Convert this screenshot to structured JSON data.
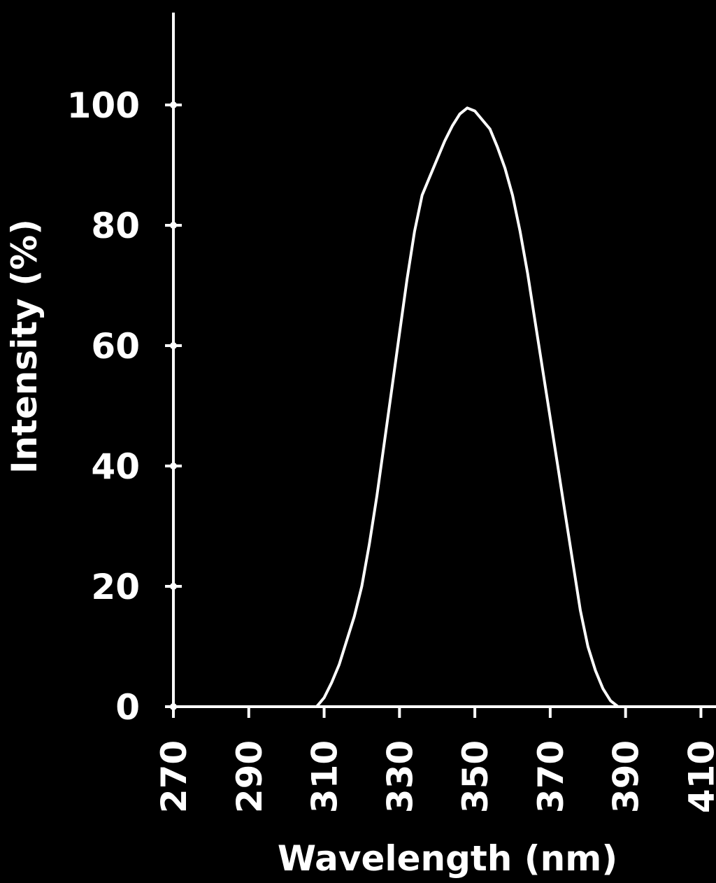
{
  "chart_data": {
    "type": "line",
    "title": "",
    "xlabel": "Wavelength (nm)",
    "ylabel": "Intensity (%)",
    "xlim": [
      270,
      414
    ],
    "ylim": [
      0,
      100
    ],
    "x_ticks": [
      270,
      290,
      310,
      330,
      350,
      370,
      390,
      410
    ],
    "y_ticks": [
      0,
      20,
      40,
      60,
      80,
      100
    ],
    "grid": false,
    "legend": "none",
    "colors": {
      "background": "#000000",
      "foreground": "#ffffff"
    },
    "series": [
      {
        "x": [
          270,
          290,
          305,
          308,
          310,
          312,
          314,
          316,
          318,
          320,
          322,
          324,
          326,
          328,
          330,
          332,
          334,
          336,
          338,
          340,
          342,
          344,
          346,
          348,
          350,
          352,
          354,
          356,
          358,
          360,
          362,
          364,
          366,
          368,
          370,
          372,
          374,
          376,
          378,
          380,
          382,
          384,
          386,
          388,
          390,
          392,
          394,
          396,
          398,
          400,
          402,
          410,
          414
        ],
        "y": [
          0,
          0,
          0,
          0,
          1.5,
          4,
          7,
          11,
          15,
          20,
          27,
          35,
          44,
          53,
          62,
          71,
          79,
          85,
          88,
          91,
          94,
          96.5,
          98.5,
          99.5,
          99,
          97.5,
          96,
          93,
          89.5,
          85,
          79,
          72,
          64,
          56,
          48,
          40,
          32,
          24,
          16,
          10,
          6,
          3,
          1,
          0,
          0,
          0,
          0,
          0,
          0,
          0,
          0,
          0,
          0
        ]
      }
    ]
  }
}
